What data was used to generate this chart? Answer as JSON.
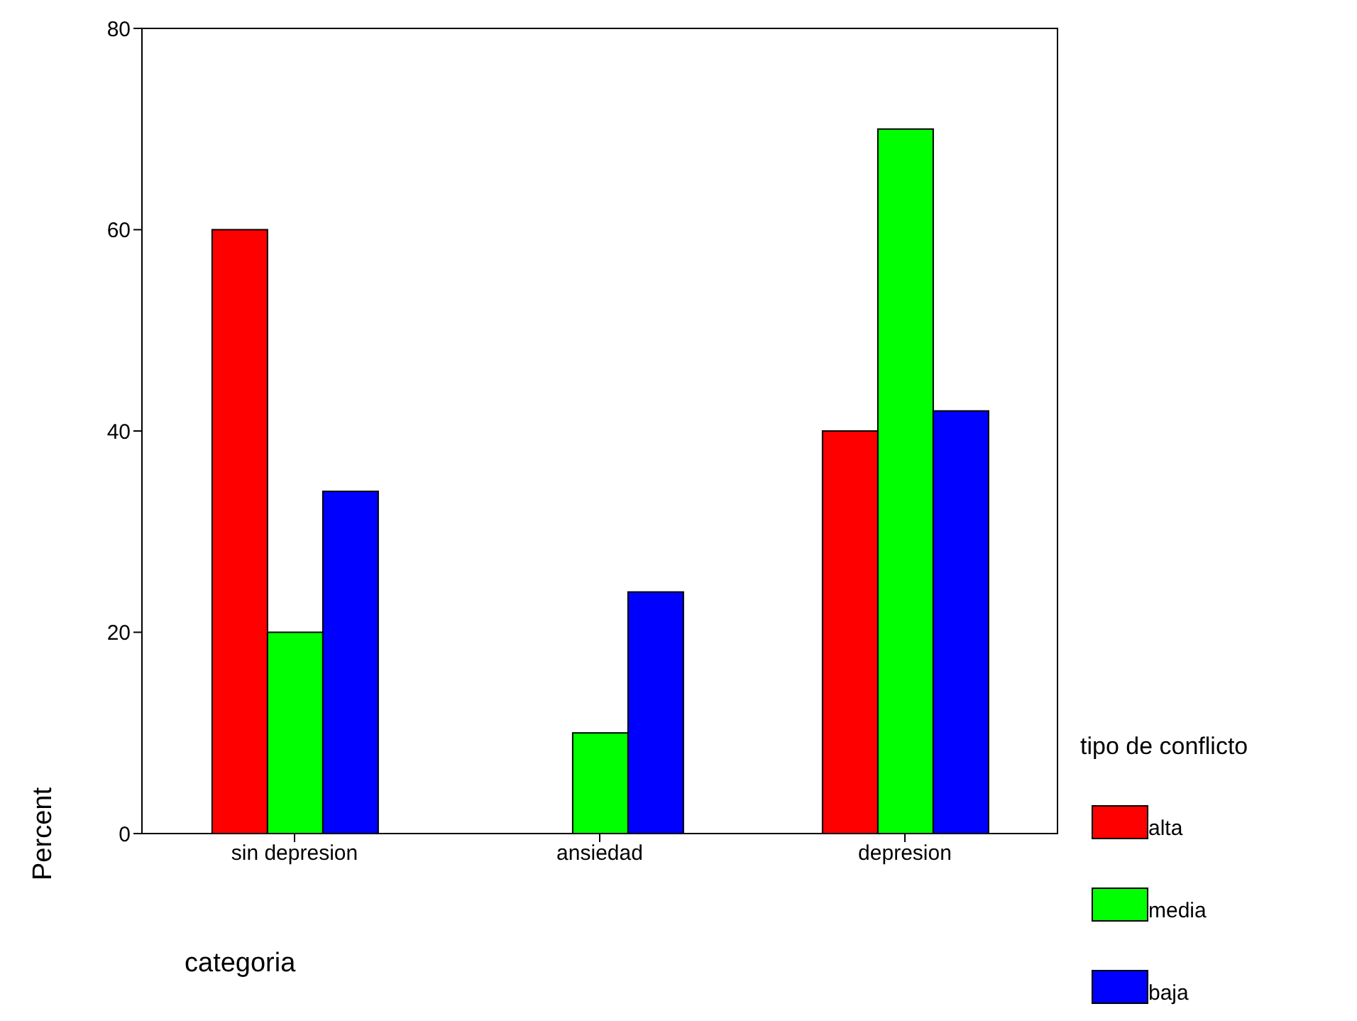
{
  "chart_data": {
    "type": "bar",
    "xlabel": "categoria",
    "ylabel": "Percent",
    "legend_title": "tipo de conflicto",
    "categories": [
      "sin depresion",
      "ansiedad",
      "depresion"
    ],
    "series": [
      {
        "name": "alta",
        "color": "#ff0000",
        "values": [
          60,
          0,
          40
        ]
      },
      {
        "name": "media",
        "color": "#00ff00",
        "values": [
          20,
          10,
          70
        ]
      },
      {
        "name": "baja",
        "color": "#0000ff",
        "values": [
          34,
          24,
          42
        ]
      }
    ],
    "ylim": [
      0,
      80
    ],
    "yticks": [
      0,
      20,
      40,
      60,
      80
    ],
    "grid": false,
    "legend": "right"
  }
}
